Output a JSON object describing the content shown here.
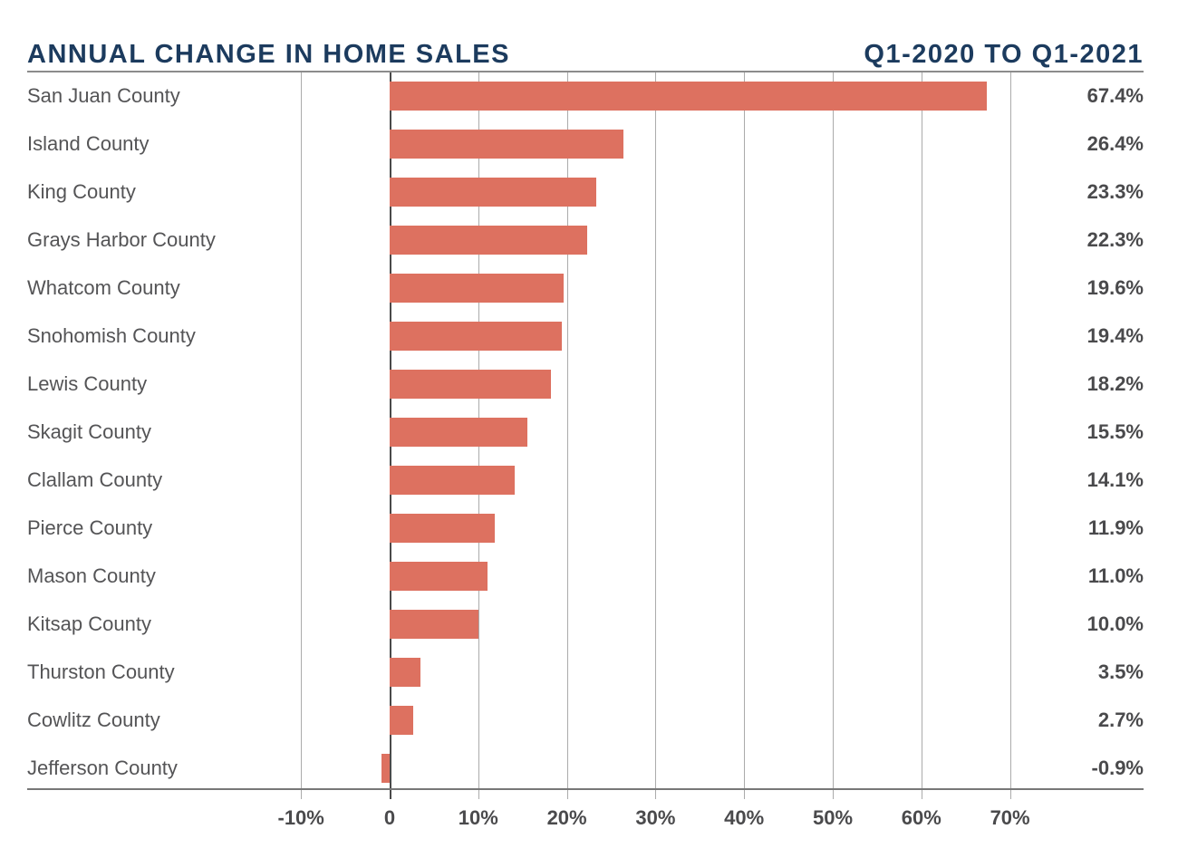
{
  "header": {
    "title": "ANNUAL CHANGE IN HOME SALES",
    "period": "Q1-2020 TO Q1-2021"
  },
  "colors": {
    "bar": "#DD7160",
    "title_navy": "#1C3B5E",
    "gridline": "#ABABAB",
    "zero_line": "#4A4A4A",
    "header_rule": "#8C8C8C",
    "axis_line": "#777777",
    "county_label": "#545456",
    "value_label": "#4A4A4C"
  },
  "chart_data": {
    "type": "bar",
    "orientation": "horizontal",
    "title": "ANNUAL CHANGE IN HOME SALES",
    "subtitle": "Q1-2020 TO Q1-2021",
    "categories": [
      "San Juan County",
      "Island County",
      "King County",
      "Grays Harbor County",
      "Whatcom County",
      "Snohomish County",
      "Lewis County",
      "Skagit County",
      "Clallam County",
      "Pierce County",
      "Mason County",
      "Kitsap County",
      "Thurston County",
      "Cowlitz County",
      "Jefferson County"
    ],
    "values": [
      67.4,
      26.4,
      23.3,
      22.3,
      19.6,
      19.4,
      18.2,
      15.5,
      14.1,
      11.9,
      11.0,
      10.0,
      3.5,
      2.7,
      -0.9
    ],
    "value_labels": [
      "67.4%",
      "26.4%",
      "23.3%",
      "22.3%",
      "19.6%",
      "19.4%",
      "18.2%",
      "15.5%",
      "14.1%",
      "11.9%",
      "11.0%",
      "10.0%",
      "3.5%",
      "2.7%",
      "-0.9%"
    ],
    "xlabel": "",
    "ylabel": "",
    "xlim": [
      -10,
      75
    ],
    "x_ticks": [
      -10,
      0,
      10,
      20,
      30,
      40,
      50,
      60,
      70
    ],
    "x_tick_labels": [
      "-10%",
      "0",
      "10%",
      "20%",
      "30%",
      "40%",
      "50%",
      "60%",
      "70%"
    ],
    "grid": "vertical",
    "legend": "none"
  }
}
